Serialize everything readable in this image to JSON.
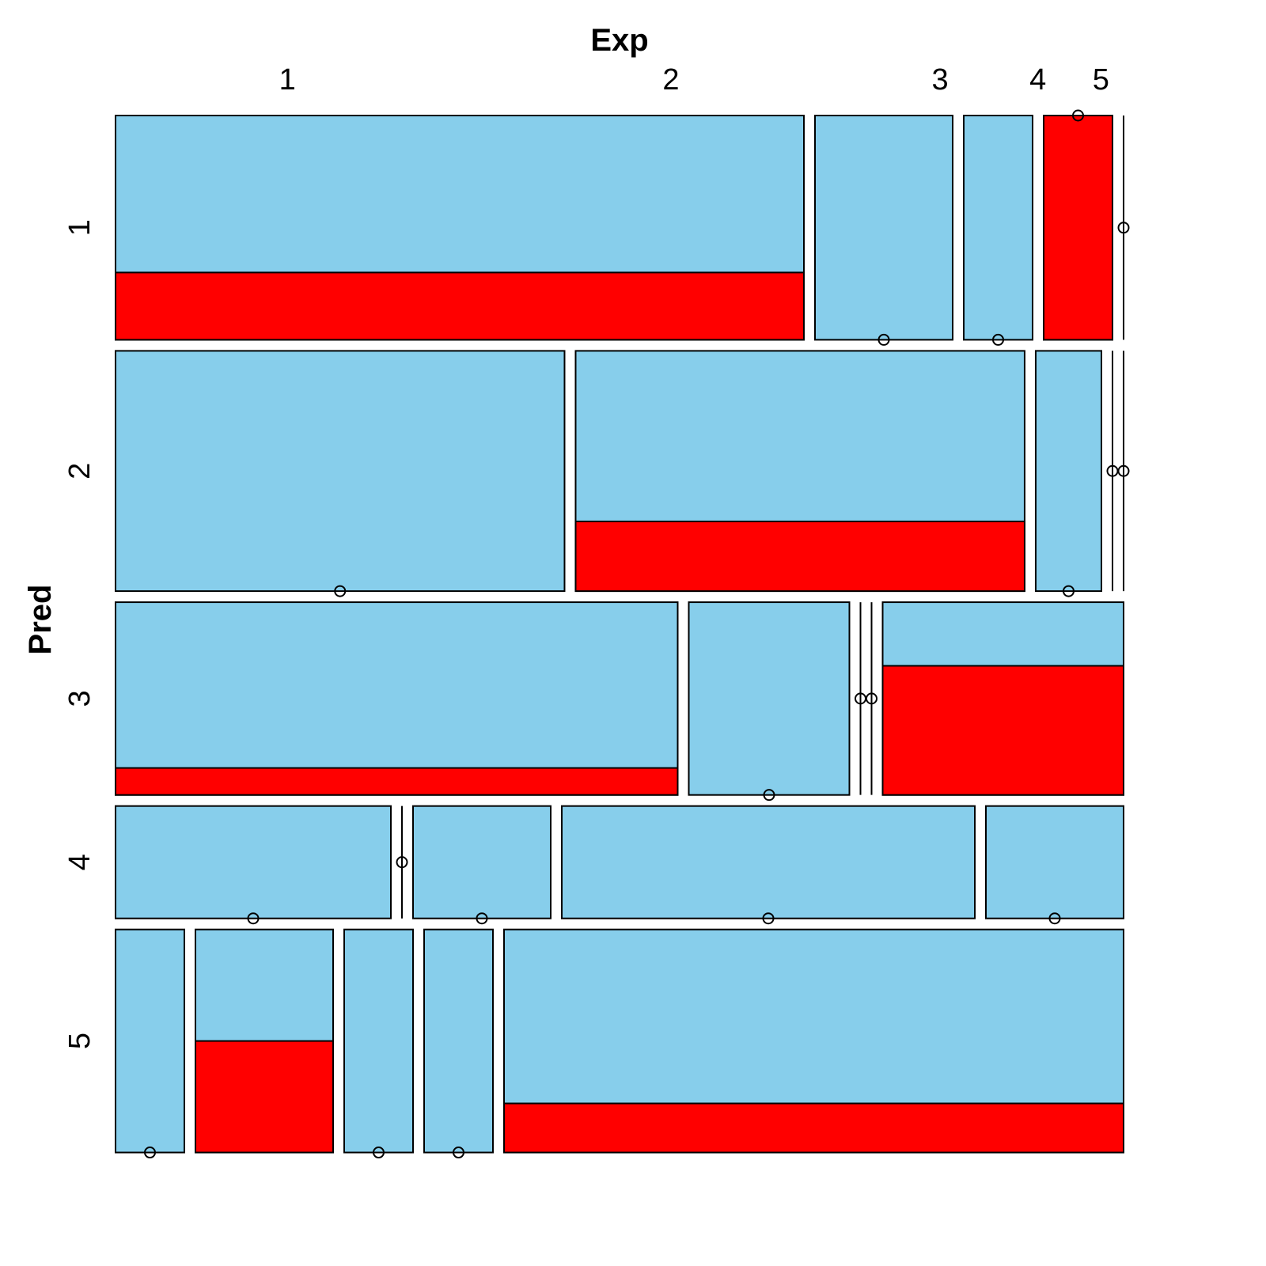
{
  "chart_data": {
    "type": "mosaic",
    "xlabel": "Exp",
    "ylabel": "Pred",
    "row_categories": [
      "1",
      "2",
      "3",
      "4",
      "5"
    ],
    "col_categories": [
      "1",
      "2",
      "3",
      "4",
      "5"
    ],
    "col_label_positions": [
      0.341,
      0.761,
      0.875,
      0.955,
      1.0
    ],
    "fill_colors": {
      "primary": "#87CEEB",
      "secondary": "#FF0000",
      "stroke": "#000000"
    },
    "rows": [
      {
        "label": "1",
        "fraction": 0.2327,
        "cells": [
          {
            "col": "1",
            "count": 60,
            "secondary_share": 0.3
          },
          {
            "col": "2",
            "count": 12,
            "secondary_share": 0.0
          },
          {
            "col": "3",
            "count": 6,
            "secondary_share": 0.0
          },
          {
            "col": "4",
            "count": 6,
            "secondary_share": 1.0
          },
          {
            "col": "5",
            "count": 0,
            "secondary_share": 0.0
          }
        ]
      },
      {
        "label": "2",
        "fraction": 0.2493,
        "cells": [
          {
            "col": "1",
            "count": 41,
            "secondary_share": 0.0
          },
          {
            "col": "2",
            "count": 41,
            "secondary_share": 0.29
          },
          {
            "col": "3",
            "count": 6,
            "secondary_share": 0.0
          },
          {
            "col": "4",
            "count": 0,
            "secondary_share": 0.0
          },
          {
            "col": "5",
            "count": 0,
            "secondary_share": 0.0
          }
        ]
      },
      {
        "label": "3",
        "fraction": 0.2,
        "cells": [
          {
            "col": "1",
            "count": 49,
            "secondary_share": 0.14
          },
          {
            "col": "2",
            "count": 14,
            "secondary_share": 0.0
          },
          {
            "col": "3",
            "count": 0,
            "secondary_share": 0.0
          },
          {
            "col": "4",
            "count": 0,
            "secondary_share": 0.0
          },
          {
            "col": "5",
            "count": 21,
            "secondary_share": 0.67
          }
        ]
      },
      {
        "label": "4",
        "fraction": 0.1166,
        "cells": [
          {
            "col": "1",
            "count": 24,
            "secondary_share": 0.0
          },
          {
            "col": "2",
            "count": 0,
            "secondary_share": 0.0
          },
          {
            "col": "3",
            "count": 12,
            "secondary_share": 0.0
          },
          {
            "col": "4",
            "count": 36,
            "secondary_share": 0.0
          },
          {
            "col": "5",
            "count": 12,
            "secondary_share": 0.0
          }
        ]
      },
      {
        "label": "5",
        "fraction": 0.2314,
        "cells": [
          {
            "col": "1",
            "count": 6,
            "secondary_share": 0.0
          },
          {
            "col": "2",
            "count": 12,
            "secondary_share": 0.5
          },
          {
            "col": "3",
            "count": 6,
            "secondary_share": 0.0
          },
          {
            "col": "4",
            "count": 6,
            "secondary_share": 0.0
          },
          {
            "col": "5",
            "count": 54,
            "secondary_share": 0.22
          }
        ]
      }
    ]
  }
}
